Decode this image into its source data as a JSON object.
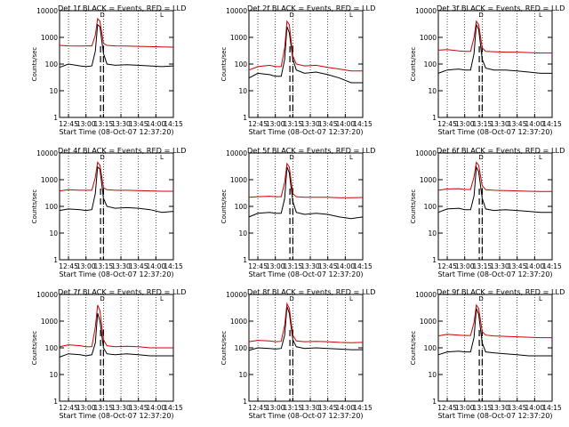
{
  "colors": {
    "events": "#000000",
    "lld": "#cc0000",
    "axes": "#000000"
  },
  "common": {
    "xlabel": "Start Time (08-Oct-07 12:37:20)",
    "ylabel": "Counts/sec",
    "x_ticks": [
      "12:45",
      "13:00",
      "13:15",
      "13:30",
      "13:45",
      "14:00",
      "14:15"
    ],
    "y_ticks": [
      "1",
      "10",
      "100",
      "1000",
      "10000"
    ],
    "markers": [
      "D",
      "L"
    ]
  },
  "chart_data": [
    {
      "type": "line",
      "title": "Det 1f BLACK = Events, RED = LLD",
      "xlabel": "Start Time (08-Oct-07 12:37:20)",
      "ylabel": "Counts/sec",
      "xlim": [
        "12:37:20",
        "14:15"
      ],
      "ylim": [
        1,
        10000
      ],
      "yscale": "log",
      "series": [
        {
          "name": "Events",
          "color": "#000000",
          "x": [
            "12:37",
            "12:45",
            "12:55",
            "13:00",
            "13:05",
            "13:08",
            "13:10",
            "13:12",
            "13:15",
            "13:18",
            "13:25",
            "13:35",
            "13:45",
            "13:55",
            "14:05",
            "14:15"
          ],
          "values": [
            75,
            100,
            85,
            80,
            85,
            300,
            3000,
            2500,
            250,
            100,
            90,
            95,
            90,
            85,
            80,
            85
          ]
        },
        {
          "name": "LLD",
          "color": "#cc0000",
          "x": [
            "12:37",
            "12:45",
            "12:55",
            "13:00",
            "13:05",
            "13:08",
            "13:10",
            "13:12",
            "13:15",
            "13:18",
            "13:25",
            "13:35",
            "13:45",
            "13:55",
            "14:05",
            "14:15"
          ],
          "values": [
            500,
            480,
            470,
            480,
            480,
            1200,
            5000,
            4000,
            600,
            500,
            480,
            470,
            460,
            450,
            440,
            430
          ]
        }
      ]
    },
    {
      "type": "line",
      "title": "Det 2f BLACK = Events, RED = LLD",
      "xlabel": "Start Time (08-Oct-07 12:37:20)",
      "ylabel": "Counts/sec",
      "xlim": [
        "12:37:20",
        "14:15"
      ],
      "ylim": [
        1,
        10000
      ],
      "yscale": "log",
      "series": [
        {
          "name": "Events",
          "color": "#000000",
          "x": [
            "12:37",
            "12:45",
            "12:55",
            "13:00",
            "13:05",
            "13:08",
            "13:10",
            "13:12",
            "13:15",
            "13:18",
            "13:25",
            "13:35",
            "13:45",
            "13:55",
            "14:05",
            "14:15"
          ],
          "values": [
            30,
            45,
            40,
            35,
            35,
            150,
            2500,
            1500,
            150,
            60,
            45,
            50,
            40,
            30,
            20,
            20
          ]
        },
        {
          "name": "LLD",
          "color": "#cc0000",
          "x": [
            "12:37",
            "12:45",
            "12:55",
            "13:00",
            "13:05",
            "13:08",
            "13:10",
            "13:12",
            "13:15",
            "13:18",
            "13:25",
            "13:35",
            "13:45",
            "13:55",
            "14:05",
            "14:15"
          ],
          "values": [
            60,
            80,
            90,
            80,
            80,
            400,
            4000,
            3000,
            200,
            100,
            85,
            90,
            75,
            65,
            55,
            55
          ]
        }
      ]
    },
    {
      "type": "line",
      "title": "Det 3f BLACK = Events, RED = LLD",
      "xlabel": "Start Time (08-Oct-07 12:37:20)",
      "ylabel": "Counts/sec",
      "xlim": [
        "12:37:20",
        "14:15"
      ],
      "ylim": [
        1,
        10000
      ],
      "yscale": "log",
      "series": [
        {
          "name": "Events",
          "color": "#000000",
          "x": [
            "12:37",
            "12:45",
            "12:55",
            "13:00",
            "13:05",
            "13:08",
            "13:10",
            "13:12",
            "13:15",
            "13:18",
            "13:25",
            "13:35",
            "13:45",
            "13:55",
            "14:05",
            "14:15"
          ],
          "values": [
            45,
            60,
            65,
            60,
            60,
            250,
            3000,
            2000,
            150,
            70,
            60,
            60,
            55,
            50,
            45,
            45
          ]
        },
        {
          "name": "LLD",
          "color": "#cc0000",
          "x": [
            "12:37",
            "12:45",
            "12:55",
            "13:00",
            "13:05",
            "13:08",
            "13:10",
            "13:12",
            "13:15",
            "13:18",
            "13:25",
            "13:35",
            "13:45",
            "13:55",
            "14:05",
            "14:15"
          ],
          "values": [
            330,
            350,
            310,
            300,
            300,
            1000,
            4000,
            3000,
            400,
            300,
            290,
            280,
            280,
            270,
            260,
            260
          ]
        }
      ]
    },
    {
      "type": "line",
      "title": "Det 4f BLACK = Events, RED = LLD",
      "xlabel": "Start Time (08-Oct-07 12:37:20)",
      "ylabel": "Counts/sec",
      "xlim": [
        "12:37:20",
        "14:15"
      ],
      "ylim": [
        1,
        10000
      ],
      "yscale": "log",
      "series": [
        {
          "name": "Events",
          "color": "#000000",
          "x": [
            "12:37",
            "12:45",
            "12:55",
            "13:00",
            "13:05",
            "13:08",
            "13:10",
            "13:12",
            "13:15",
            "13:18",
            "13:25",
            "13:35",
            "13:45",
            "13:55",
            "14:05",
            "14:15"
          ],
          "values": [
            70,
            80,
            75,
            70,
            75,
            300,
            3000,
            2500,
            200,
            100,
            85,
            90,
            85,
            75,
            60,
            65
          ]
        },
        {
          "name": "LLD",
          "color": "#cc0000",
          "x": [
            "12:37",
            "12:45",
            "12:55",
            "13:00",
            "13:05",
            "13:08",
            "13:10",
            "13:12",
            "13:15",
            "13:18",
            "13:25",
            "13:35",
            "13:45",
            "13:55",
            "14:05",
            "14:15"
          ],
          "values": [
            380,
            420,
            400,
            400,
            400,
            1200,
            4500,
            3500,
            500,
            420,
            400,
            400,
            390,
            380,
            370,
            370
          ]
        }
      ]
    },
    {
      "type": "line",
      "title": "Det 5f BLACK = Events, RED = LLD",
      "xlabel": "Start Time (08-Oct-07 12:37:20)",
      "ylabel": "Counts/sec",
      "xlim": [
        "12:37:20",
        "14:15"
      ],
      "ylim": [
        1,
        10000
      ],
      "yscale": "log",
      "series": [
        {
          "name": "Events",
          "color": "#000000",
          "x": [
            "12:37",
            "12:45",
            "12:55",
            "13:00",
            "13:05",
            "13:08",
            "13:10",
            "13:12",
            "13:15",
            "13:18",
            "13:25",
            "13:35",
            "13:45",
            "13:55",
            "14:05",
            "14:15"
          ],
          "values": [
            40,
            55,
            60,
            55,
            55,
            200,
            3000,
            1800,
            150,
            60,
            50,
            55,
            50,
            40,
            35,
            40
          ]
        },
        {
          "name": "LLD",
          "color": "#cc0000",
          "x": [
            "12:37",
            "12:45",
            "12:55",
            "13:00",
            "13:05",
            "13:08",
            "13:10",
            "13:12",
            "13:15",
            "13:18",
            "13:25",
            "13:35",
            "13:45",
            "13:55",
            "14:05",
            "14:15"
          ],
          "values": [
            220,
            230,
            240,
            230,
            230,
            800,
            4000,
            3000,
            300,
            230,
            220,
            220,
            220,
            210,
            210,
            215
          ]
        }
      ]
    },
    {
      "type": "line",
      "title": "Det 6f BLACK = Events, RED = LLD",
      "xlabel": "Start Time (08-Oct-07 12:37:20)",
      "ylabel": "Counts/sec",
      "xlim": [
        "12:37:20",
        "14:15"
      ],
      "ylim": [
        1,
        10000
      ],
      "yscale": "log",
      "series": [
        {
          "name": "Events",
          "color": "#000000",
          "x": [
            "12:37",
            "12:45",
            "12:55",
            "13:00",
            "13:05",
            "13:08",
            "13:10",
            "13:12",
            "13:15",
            "13:18",
            "13:25",
            "13:35",
            "13:45",
            "13:55",
            "14:05",
            "14:15"
          ],
          "values": [
            60,
            80,
            85,
            75,
            75,
            250,
            3000,
            2000,
            200,
            80,
            70,
            75,
            70,
            65,
            60,
            60
          ]
        },
        {
          "name": "LLD",
          "color": "#cc0000",
          "x": [
            "12:37",
            "12:45",
            "12:55",
            "13:00",
            "13:05",
            "13:08",
            "13:10",
            "13:12",
            "13:15",
            "13:18",
            "13:25",
            "13:35",
            "13:45",
            "13:55",
            "14:05",
            "14:15"
          ],
          "values": [
            400,
            450,
            460,
            430,
            430,
            1300,
            4500,
            3500,
            600,
            420,
            400,
            390,
            380,
            370,
            360,
            360
          ]
        }
      ]
    },
    {
      "type": "line",
      "title": "Det 7f BLACK = Events, RED = LLD",
      "xlabel": "Start Time (08-Oct-07 12:37:20)",
      "ylabel": "Counts/sec",
      "xlim": [
        "12:37:20",
        "14:15"
      ],
      "ylim": [
        1,
        10000
      ],
      "yscale": "log",
      "series": [
        {
          "name": "Events",
          "color": "#000000",
          "x": [
            "12:37",
            "12:45",
            "12:55",
            "13:00",
            "13:05",
            "13:08",
            "13:10",
            "13:12",
            "13:15",
            "13:18",
            "13:25",
            "13:35",
            "13:45",
            "13:55",
            "14:05",
            "14:15"
          ],
          "values": [
            45,
            60,
            55,
            50,
            55,
            150,
            2000,
            1000,
            100,
            60,
            55,
            60,
            55,
            50,
            50,
            50
          ]
        },
        {
          "name": "LLD",
          "color": "#cc0000",
          "x": [
            "12:37",
            "12:45",
            "12:55",
            "13:00",
            "13:05",
            "13:08",
            "13:10",
            "13:12",
            "13:15",
            "13:18",
            "13:25",
            "13:35",
            "13:45",
            "13:55",
            "14:05",
            "14:15"
          ],
          "values": [
            110,
            130,
            120,
            110,
            110,
            600,
            4000,
            2500,
            200,
            120,
            110,
            115,
            110,
            100,
            100,
            100
          ]
        }
      ]
    },
    {
      "type": "line",
      "title": "Det 8f BLACK = Events, RED = LLD",
      "xlabel": "Start Time (08-Oct-07 12:37:20)",
      "ylabel": "Counts/sec",
      "xlim": [
        "12:37:20",
        "14:15"
      ],
      "ylim": [
        1,
        10000
      ],
      "yscale": "log",
      "series": [
        {
          "name": "Events",
          "color": "#000000",
          "x": [
            "12:37",
            "12:45",
            "12:55",
            "13:00",
            "13:05",
            "13:08",
            "13:10",
            "13:12",
            "13:15",
            "13:18",
            "13:25",
            "13:35",
            "13:45",
            "13:55",
            "14:05",
            "14:15"
          ],
          "values": [
            80,
            100,
            95,
            90,
            95,
            300,
            3500,
            2000,
            200,
            110,
            95,
            100,
            95,
            90,
            85,
            85
          ]
        },
        {
          "name": "LLD",
          "color": "#cc0000",
          "x": [
            "12:37",
            "12:45",
            "12:55",
            "13:00",
            "13:05",
            "13:08",
            "13:10",
            "13:12",
            "13:15",
            "13:18",
            "13:25",
            "13:35",
            "13:45",
            "13:55",
            "14:05",
            "14:15"
          ],
          "values": [
            170,
            190,
            180,
            170,
            175,
            700,
            4500,
            3000,
            300,
            180,
            170,
            175,
            170,
            160,
            155,
            160
          ]
        }
      ]
    },
    {
      "type": "line",
      "title": "Det 9f BLACK = Events, RED = LLD",
      "xlabel": "Start Time (08-Oct-07 12:37:20)",
      "ylabel": "Counts/sec",
      "xlim": [
        "12:37:20",
        "14:15"
      ],
      "ylim": [
        1,
        10000
      ],
      "yscale": "log",
      "series": [
        {
          "name": "Events",
          "color": "#000000",
          "x": [
            "12:37",
            "12:45",
            "12:55",
            "13:00",
            "13:05",
            "13:08",
            "13:10",
            "13:12",
            "13:15",
            "13:18",
            "13:25",
            "13:35",
            "13:45",
            "13:55",
            "14:05",
            "14:15"
          ],
          "values": [
            55,
            70,
            75,
            70,
            70,
            250,
            3000,
            1800,
            150,
            70,
            65,
            60,
            55,
            50,
            50,
            50
          ]
        },
        {
          "name": "LLD",
          "color": "#cc0000",
          "x": [
            "12:37",
            "12:45",
            "12:55",
            "13:00",
            "13:05",
            "13:08",
            "13:10",
            "13:12",
            "13:15",
            "13:18",
            "13:25",
            "13:35",
            "13:45",
            "13:55",
            "14:05",
            "14:15"
          ],
          "values": [
            280,
            320,
            300,
            290,
            290,
            900,
            4000,
            3000,
            400,
            300,
            280,
            270,
            260,
            250,
            240,
            240
          ]
        }
      ]
    }
  ]
}
